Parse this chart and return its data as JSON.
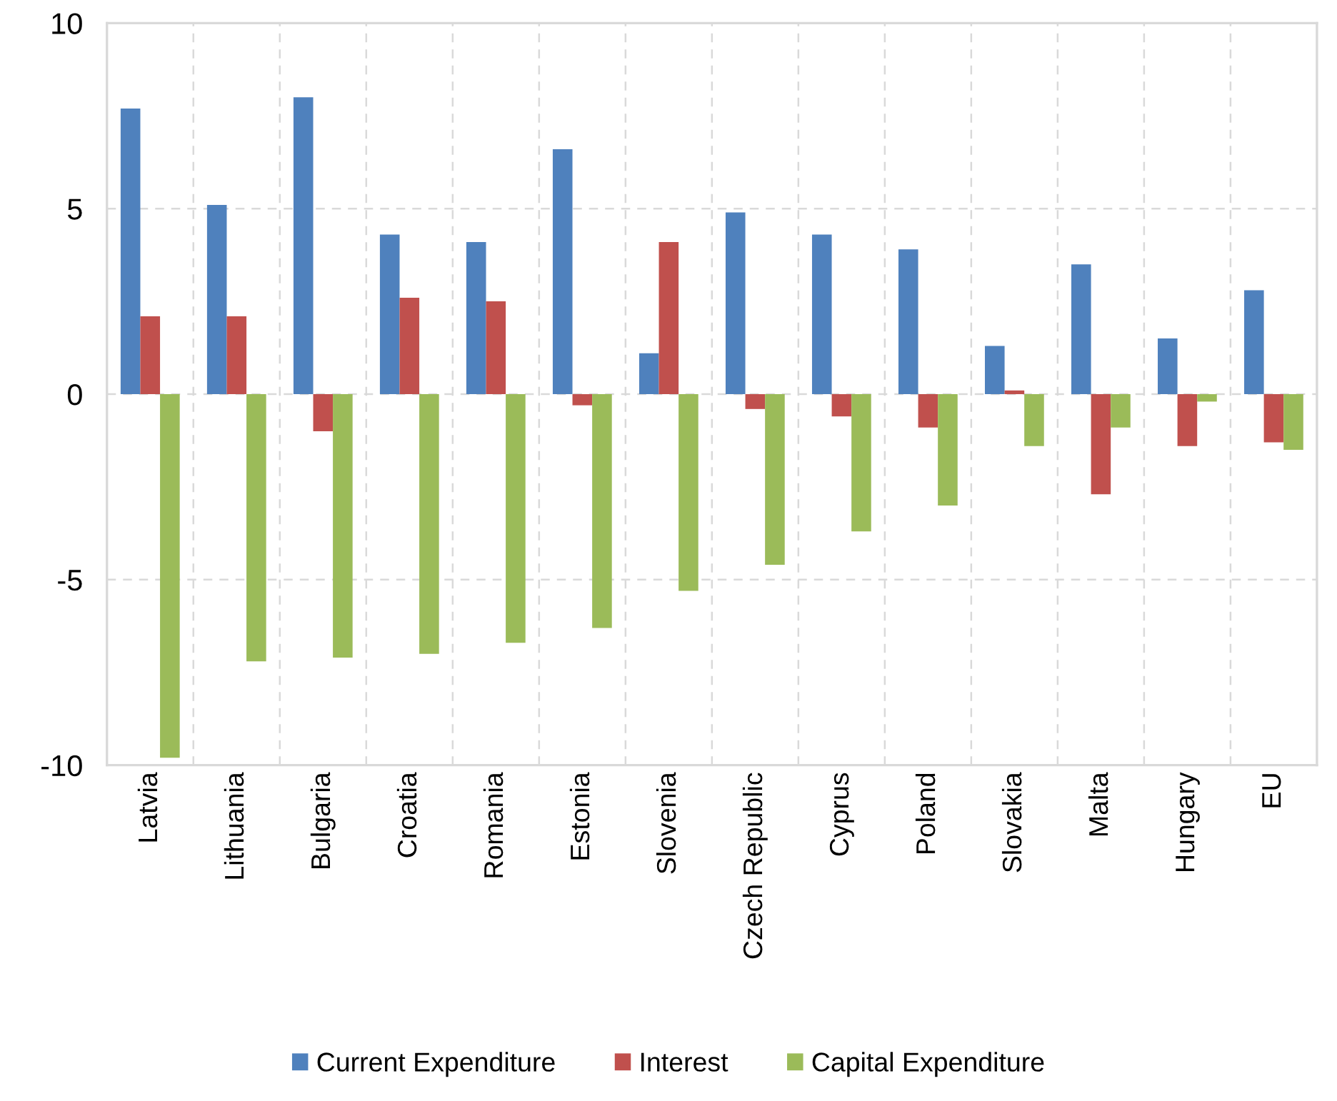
{
  "chart_data": {
    "type": "bar",
    "categories": [
      "Latvia",
      "Lithuania",
      "Bulgaria",
      "Croatia",
      "Romania",
      "Estonia",
      "Slovenia",
      "Czech Republic",
      "Cyprus",
      "Poland",
      "Slovakia",
      "Malta",
      "Hungary",
      "EU"
    ],
    "series": [
      {
        "name": "Current Expenditure",
        "color": "#4f81bd",
        "values": [
          7.7,
          5.1,
          8.0,
          4.3,
          4.1,
          6.6,
          1.1,
          4.9,
          4.3,
          3.9,
          1.3,
          3.5,
          1.5,
          2.8
        ]
      },
      {
        "name": "Interest",
        "color": "#c0504d",
        "values": [
          2.1,
          2.1,
          -1.0,
          2.6,
          2.5,
          -0.3,
          4.1,
          -0.4,
          -0.6,
          -0.9,
          0.1,
          -2.7,
          -1.4,
          -1.3
        ]
      },
      {
        "name": "Capital Expenditure",
        "color": "#9bbb59",
        "values": [
          -9.8,
          -7.2,
          -7.1,
          -7.0,
          -6.7,
          -6.3,
          -5.3,
          -4.6,
          -3.7,
          -3.0,
          -1.4,
          -0.9,
          -0.2,
          -1.5
        ]
      }
    ],
    "ylim": [
      -10,
      10
    ],
    "yticks": [
      -10,
      -5,
      0,
      5,
      10
    ],
    "grid": true,
    "legend": "bottom"
  }
}
